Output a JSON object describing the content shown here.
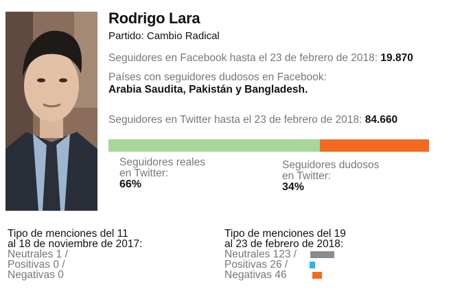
{
  "profile": {
    "name": "Rodrigo Lara",
    "party": "Partido: Cambio Radical"
  },
  "facebook": {
    "followers_label": "Seguidores en Facebook hasta el 23 de febrero de 2018:",
    "followers_value": "19.870",
    "countries_label": "Países con seguidores dudosos en Facebook:",
    "countries_value": "Arabia Saudita, Pakistán y Bangladesh."
  },
  "twitter": {
    "followers_label": "Seguidores en Twitter hasta el 23 de febrero de 2018:",
    "followers_value": "84.660",
    "real_label_1": "Seguidores reales",
    "real_label_2": "en Twitter:",
    "real_pct": "66%",
    "fake_label_1": "Seguidores dudosos",
    "fake_label_2": "en Twitter:",
    "fake_pct": "34%",
    "real_share": 0.66,
    "fake_share": 0.34
  },
  "colors": {
    "real": "#a8d79a",
    "fake": "#f26b21",
    "neutral": "#8c8c8c",
    "positive": "#29b6e6",
    "negative": "#f26b21"
  },
  "mentions_2017": {
    "title_1": "Tipo de menciones del 11",
    "title_2": "al 18 de noviembre de 2017:",
    "neutral": "Neutrales 1 /",
    "positive": "Positivas 0 /",
    "negative": "Negativas 0"
  },
  "mentions_2018": {
    "title_1": "Tipo de menciones del 19",
    "title_2": "al 23 de febrero de 2018:",
    "neutral": "Neutrales 123 /",
    "positive": "Positivas 26 /",
    "negative": "Negativas 46",
    "neutral_count": 123,
    "positive_count": 26,
    "negative_count": 46
  }
}
